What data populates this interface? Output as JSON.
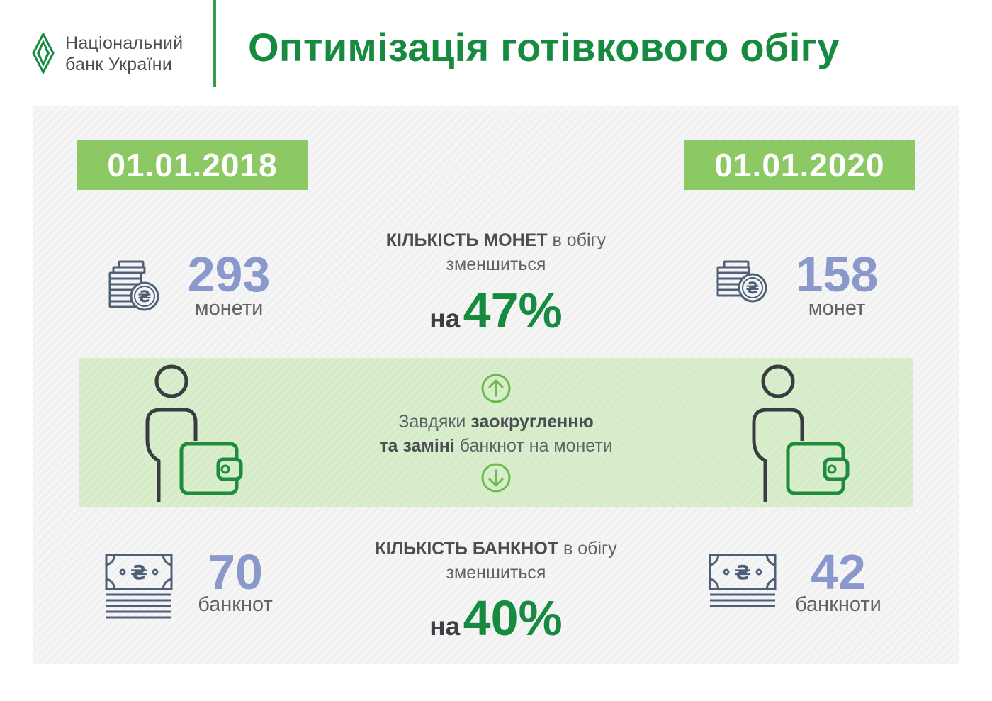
{
  "header": {
    "logo_line1": "Національний",
    "logo_line2": "банк України",
    "title": "Оптимізація готівкового обігу"
  },
  "dates": {
    "left": "01.01.2018",
    "right": "01.01.2020"
  },
  "coins": {
    "left_value": "293",
    "left_unit": "монети",
    "right_value": "158",
    "right_unit": "монет",
    "caption_bold": "КІЛЬКІСТЬ МОНЕТ",
    "caption_rest": " в обігу",
    "caption_line2": "зменшиться",
    "pct_prefix": "на",
    "pct_value": "47%"
  },
  "band": {
    "line1_plain": "Завдяки ",
    "line1_bold": "заокругленню",
    "line2_bold": "та заміні",
    "line2_plain": " банкнот на монети"
  },
  "banknotes": {
    "left_value": "70",
    "left_unit": "банкнот",
    "right_value": "42",
    "right_unit": "банкноти",
    "caption_bold": "КІЛЬКІСТЬ БАНКНОТ",
    "caption_rest": " в обігу",
    "caption_line2": "зменшиться",
    "pct_prefix": "на",
    "pct_value": "40%"
  },
  "colors": {
    "brand_green": "#168a3f",
    "date_green": "#8cc863",
    "band_green": "#d6ecc8",
    "number_blue": "#8a98cc",
    "icon_slate": "#4d6078"
  }
}
